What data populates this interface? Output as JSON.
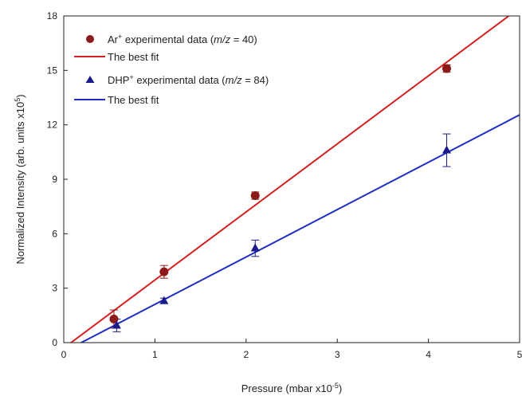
{
  "chart_data": {
    "type": "scatter",
    "xlabel": "Pressure (mbar x10",
    "xlabel_exp": "-5",
    "xlabel_tail": ")",
    "ylabel": "Normalized Intensity (arb. units x10",
    "ylabel_exp": "5",
    "ylabel_tail": ")",
    "xlim": [
      0,
      5
    ],
    "ylim": [
      0,
      18
    ],
    "x_ticks": [
      "0",
      "1",
      "2",
      "3",
      "4",
      "5"
    ],
    "y_ticks": [
      "0",
      "3",
      "6",
      "9",
      "12",
      "15",
      "18"
    ],
    "grid": false,
    "legend_position": "top-left",
    "series": [
      {
        "name": "Ar",
        "name_sup": "+",
        "name_tail": " experimental data (",
        "name_italic": "m/z",
        "name_end": " = 40)",
        "marker": "circle",
        "color": "#8b1a1a",
        "x": [
          0.55,
          1.1,
          2.1,
          4.2
        ],
        "y": [
          1.3,
          3.9,
          8.1,
          15.1
        ],
        "err": [
          0.5,
          0.35,
          0.2,
          0.2
        ]
      },
      {
        "name": "DHP",
        "name_sup": "+",
        "name_tail": " experimental data (",
        "name_italic": "m/z",
        "name_end": " = 84)",
        "marker": "triangle",
        "color": "#1a1a8b",
        "x": [
          0.58,
          1.1,
          2.1,
          4.2
        ],
        "y": [
          0.95,
          2.3,
          5.2,
          10.6
        ],
        "err": [
          0.35,
          0.15,
          0.45,
          0.9
        ]
      }
    ],
    "fits": [
      {
        "name": "The best fit",
        "color": "#d42020",
        "slope": 3.75,
        "intercept": -0.3
      },
      {
        "name": "The best fit",
        "color": "#1e2fc4",
        "slope": 2.61,
        "intercept": -0.5
      }
    ]
  }
}
